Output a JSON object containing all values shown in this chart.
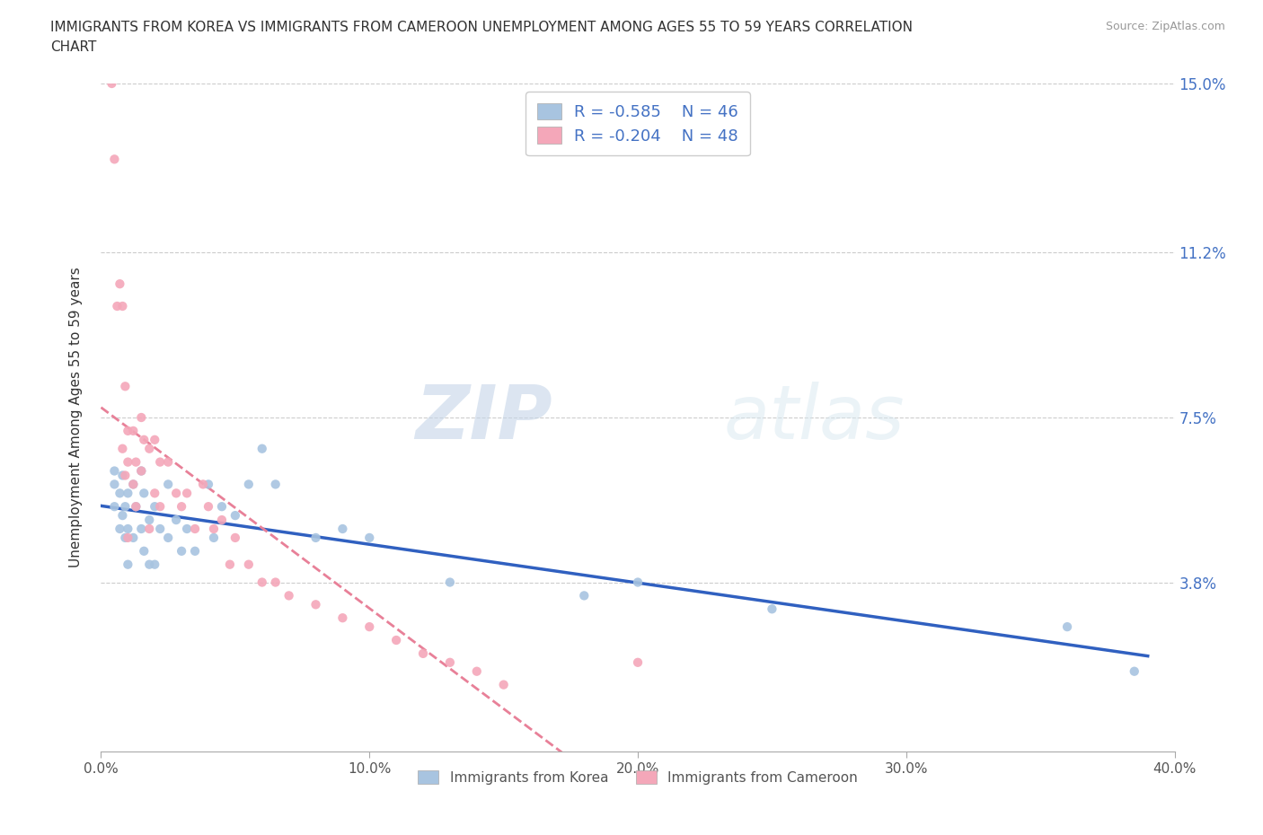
{
  "title_line1": "IMMIGRANTS FROM KOREA VS IMMIGRANTS FROM CAMEROON UNEMPLOYMENT AMONG AGES 55 TO 59 YEARS CORRELATION",
  "title_line2": "CHART",
  "source_text": "Source: ZipAtlas.com",
  "ylabel": "Unemployment Among Ages 55 to 59 years",
  "xlim": [
    0.0,
    0.4
  ],
  "ylim": [
    0.0,
    0.15
  ],
  "xticks": [
    0.0,
    0.1,
    0.2,
    0.3,
    0.4
  ],
  "xtick_labels": [
    "0.0%",
    "10.0%",
    "20.0%",
    "30.0%",
    "40.0%"
  ],
  "ytick_vals": [
    0.0,
    0.038,
    0.075,
    0.112,
    0.15
  ],
  "ytick_labels": [
    "",
    "3.8%",
    "7.5%",
    "11.2%",
    "15.0%"
  ],
  "korea_R": -0.585,
  "korea_N": 46,
  "cameroon_R": -0.204,
  "cameroon_N": 48,
  "korea_color": "#a8c4e0",
  "cameroon_color": "#f4a7b9",
  "korea_line_color": "#3060c0",
  "cameroon_line_color": "#e88098",
  "watermark_zip": "ZIP",
  "watermark_atlas": "atlas",
  "legend_label_korea": "Immigrants from Korea",
  "legend_label_cameroon": "Immigrants from Cameroon",
  "korea_x": [
    0.005,
    0.005,
    0.005,
    0.007,
    0.007,
    0.008,
    0.008,
    0.009,
    0.009,
    0.01,
    0.01,
    0.01,
    0.012,
    0.012,
    0.013,
    0.015,
    0.015,
    0.016,
    0.016,
    0.018,
    0.018,
    0.02,
    0.02,
    0.022,
    0.025,
    0.025,
    0.028,
    0.03,
    0.032,
    0.035,
    0.04,
    0.042,
    0.045,
    0.05,
    0.055,
    0.06,
    0.065,
    0.08,
    0.09,
    0.1,
    0.13,
    0.18,
    0.2,
    0.25,
    0.36,
    0.385
  ],
  "korea_y": [
    0.06,
    0.055,
    0.063,
    0.058,
    0.05,
    0.062,
    0.053,
    0.055,
    0.048,
    0.058,
    0.05,
    0.042,
    0.06,
    0.048,
    0.055,
    0.063,
    0.05,
    0.058,
    0.045,
    0.052,
    0.042,
    0.055,
    0.042,
    0.05,
    0.06,
    0.048,
    0.052,
    0.045,
    0.05,
    0.045,
    0.06,
    0.048,
    0.055,
    0.053,
    0.06,
    0.068,
    0.06,
    0.048,
    0.05,
    0.048,
    0.038,
    0.035,
    0.038,
    0.032,
    0.028,
    0.018
  ],
  "cameroon_x": [
    0.004,
    0.005,
    0.006,
    0.007,
    0.008,
    0.008,
    0.009,
    0.009,
    0.01,
    0.01,
    0.01,
    0.012,
    0.012,
    0.013,
    0.013,
    0.015,
    0.015,
    0.016,
    0.018,
    0.018,
    0.02,
    0.02,
    0.022,
    0.022,
    0.025,
    0.028,
    0.03,
    0.032,
    0.035,
    0.038,
    0.04,
    0.042,
    0.045,
    0.048,
    0.05,
    0.055,
    0.06,
    0.065,
    0.07,
    0.08,
    0.09,
    0.1,
    0.11,
    0.12,
    0.13,
    0.14,
    0.15,
    0.2
  ],
  "cameroon_y": [
    0.15,
    0.133,
    0.1,
    0.105,
    0.068,
    0.1,
    0.082,
    0.062,
    0.072,
    0.065,
    0.048,
    0.072,
    0.06,
    0.065,
    0.055,
    0.075,
    0.063,
    0.07,
    0.068,
    0.05,
    0.07,
    0.058,
    0.065,
    0.055,
    0.065,
    0.058,
    0.055,
    0.058,
    0.05,
    0.06,
    0.055,
    0.05,
    0.052,
    0.042,
    0.048,
    0.042,
    0.038,
    0.038,
    0.035,
    0.033,
    0.03,
    0.028,
    0.025,
    0.022,
    0.02,
    0.018,
    0.015,
    0.02
  ]
}
